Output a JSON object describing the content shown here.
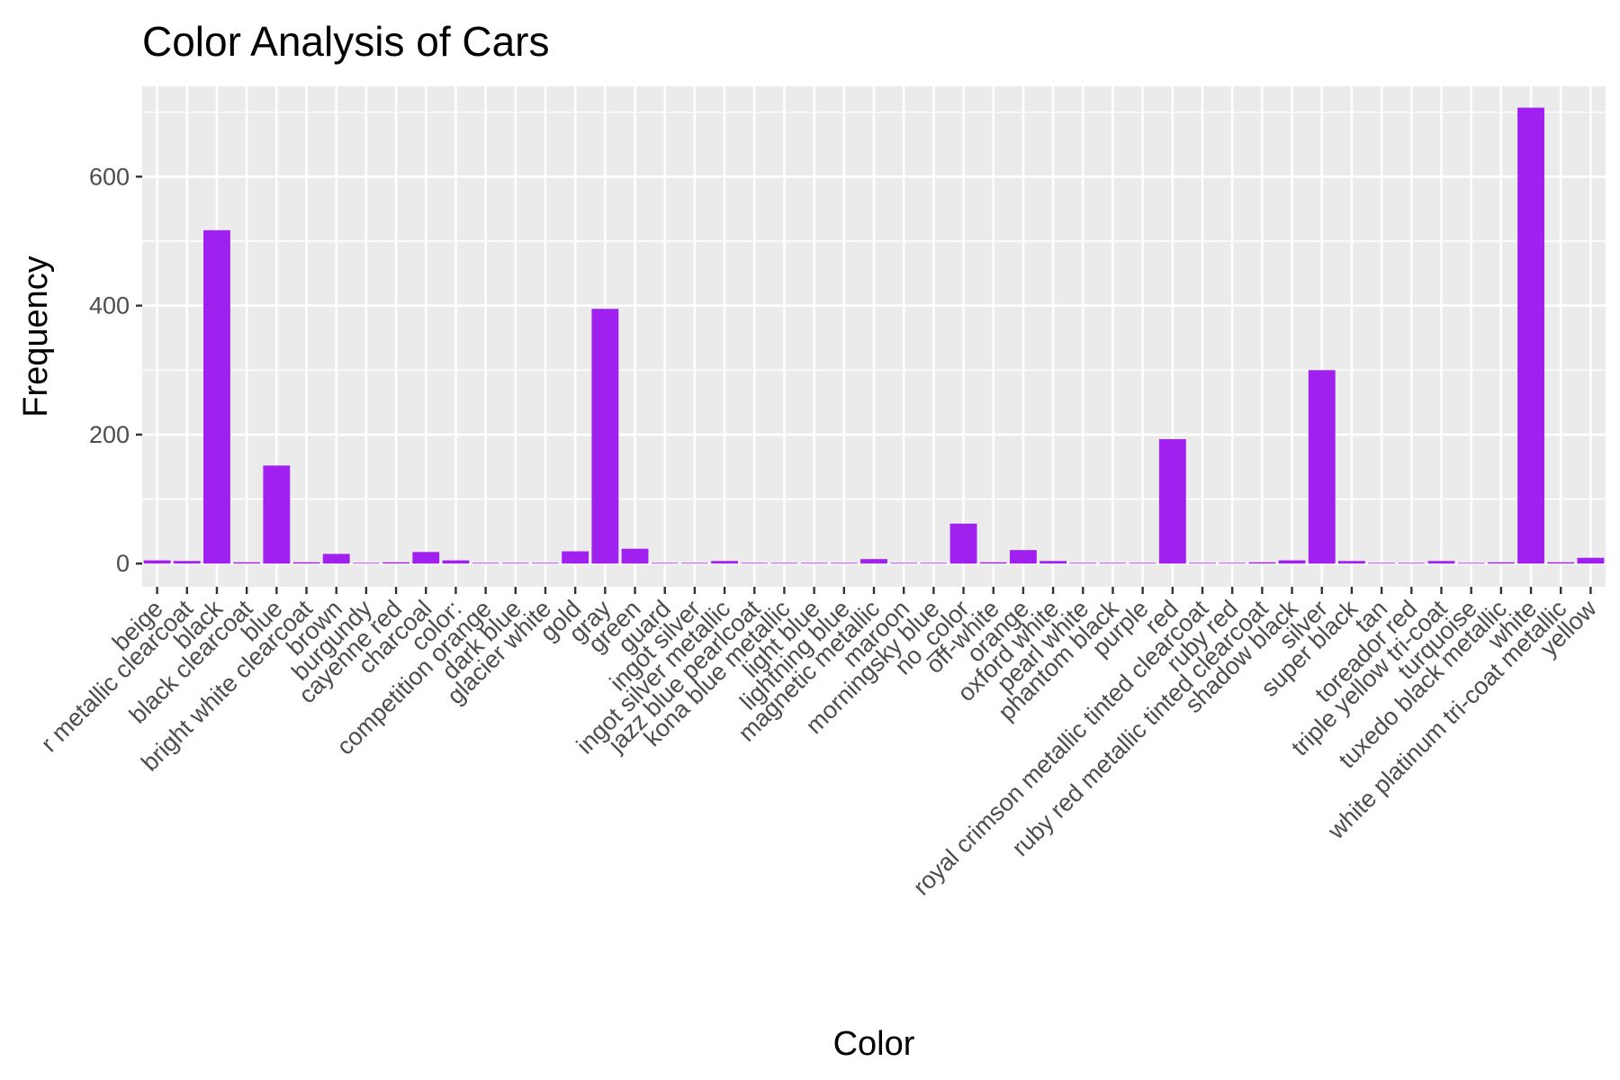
{
  "chart_data": {
    "type": "bar",
    "title": "Color Analysis of Cars",
    "xlabel": "Color",
    "ylabel": "Frequency",
    "ylim": [
      -36,
      740
    ],
    "yticks": [
      0,
      200,
      400,
      600
    ],
    "grid": true,
    "bar_color": "#A020F0",
    "panel_background": "#EBEBEB",
    "categories": [
      "beige",
      "black",
      "black",
      "black clearcoat",
      "blue",
      "bright white clearcoat",
      "brown",
      "burgundy",
      "cayenne red",
      "charcoal",
      "color:",
      "competition orange",
      "dark blue",
      "glacier white",
      "gold",
      "gray",
      "green",
      "guard",
      "ingot silver",
      "ingot silver metallic",
      "jazz blue pearlcoat",
      "kona blue metallic",
      "light blue",
      "lightning blue",
      "magnetic metallic",
      "maroon",
      "morningsky blue",
      "no_color",
      "off-white",
      "orange",
      "oxford white",
      "pearl white",
      "phantom black",
      "purple",
      "red",
      "royal crimson metallic tinted clearcoat",
      "ruby red",
      "ruby red metallic tinted clearcoat",
      "shadow black",
      "silver",
      "super black",
      "tan",
      "toreador red",
      "triple yellow tri-coat",
      "turquoise",
      "tuxedo black metallic",
      "white",
      "white platinum tri-coat metallic",
      "yellow"
    ],
    "category_label_overrides": {
      "1": "r metallic clearcoat"
    },
    "values": [
      5,
      4,
      517,
      2,
      152,
      2,
      15,
      1,
      2,
      18,
      5,
      1,
      1,
      1,
      19,
      395,
      23,
      1,
      1,
      4,
      1,
      1,
      1,
      1,
      7,
      1,
      1,
      62,
      2,
      21,
      4,
      1,
      1,
      1,
      193,
      1,
      1,
      2,
      5,
      300,
      4,
      1,
      1,
      4,
      1,
      2,
      707,
      2,
      9
    ]
  }
}
